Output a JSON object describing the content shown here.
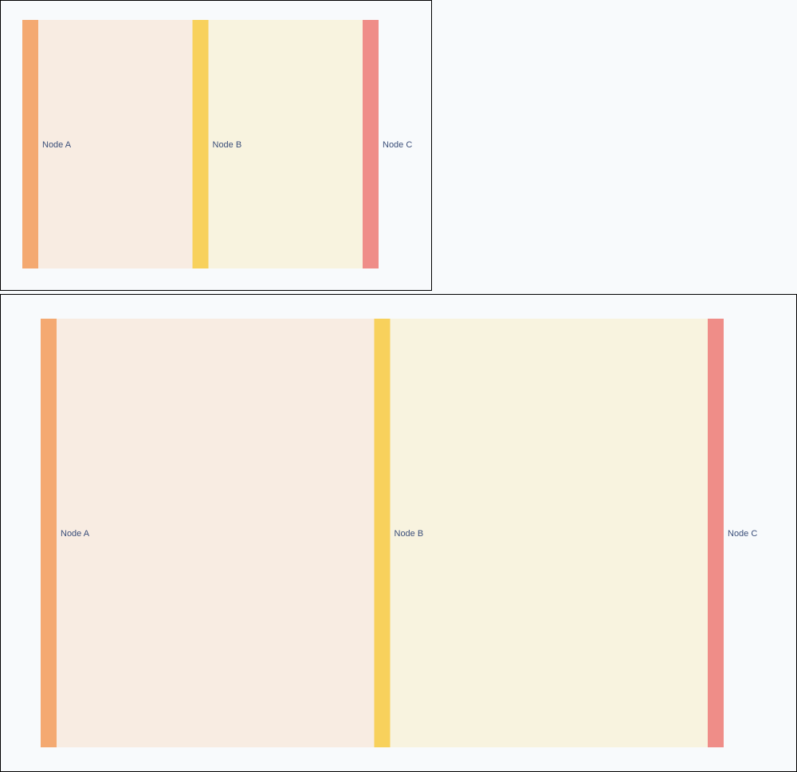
{
  "diagram_type": "sankey",
  "colors": {
    "page_background": "#f8fafc",
    "panel_border": "#000000",
    "label_text": "#3b4f7a"
  },
  "nodes": [
    {
      "id": "node-a",
      "label": "Node A",
      "color": "#f4a971"
    },
    {
      "id": "node-b",
      "label": "Node B",
      "color": "#f8d15c"
    },
    {
      "id": "node-c",
      "label": "Node C",
      "color": "#ef8d88"
    }
  ],
  "links": [
    {
      "source": "node-a",
      "target": "node-b",
      "value": 1,
      "color": "#f8ece2"
    },
    {
      "source": "node-b",
      "target": "node-c",
      "value": 1,
      "color": "#f8f3df"
    }
  ]
}
